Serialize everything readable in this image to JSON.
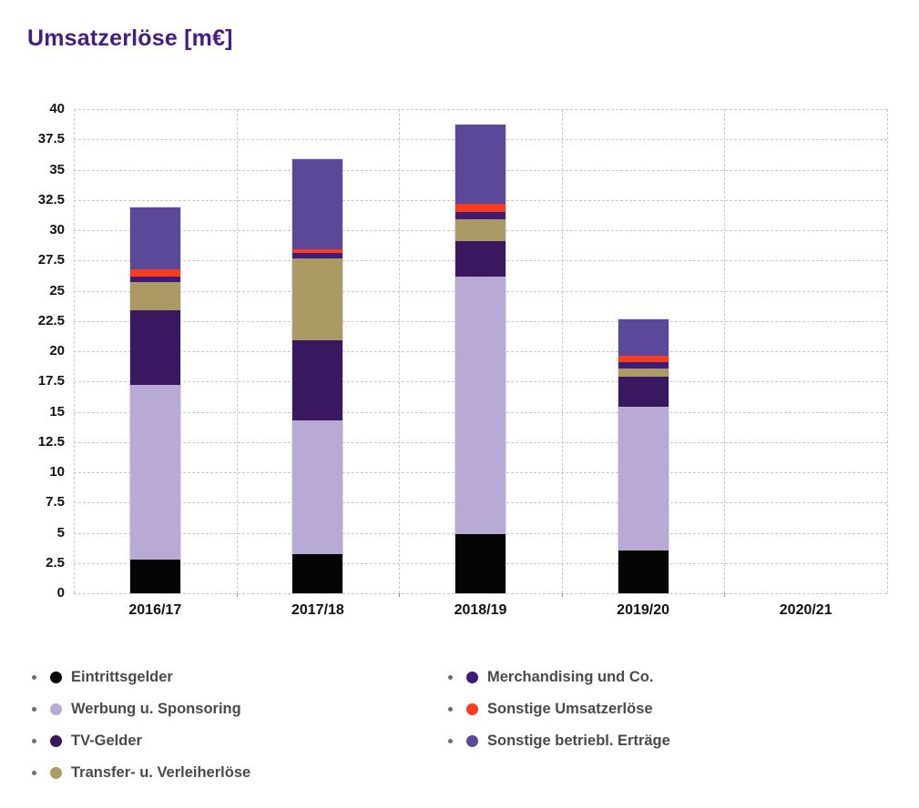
{
  "title": "Umsatzerlöse [m€]",
  "accent_colors": {
    "title": "#451d87",
    "grid": "#c9c9c9",
    "axis_text": "#111111",
    "legend_text": "#4a4a4a"
  },
  "chart_data": {
    "type": "bar",
    "stacked": true,
    "title": "Umsatzerlöse [m€]",
    "categories": [
      "2016/17",
      "2017/18",
      "2018/19",
      "2019/20",
      "2020/21"
    ],
    "series": [
      {
        "name": "Eintrittsgelder",
        "color": "#050505",
        "values": [
          2.8,
          3.2,
          4.9,
          3.5,
          0
        ]
      },
      {
        "name": "Werbung u. Sponsoring",
        "color": "#b9aad5",
        "values": [
          14.4,
          11.1,
          21.3,
          11.9,
          0
        ]
      },
      {
        "name": "TV-Gelder",
        "color": "#38195f",
        "values": [
          6.2,
          6.6,
          2.9,
          2.5,
          0
        ]
      },
      {
        "name": "Transfer- u. Verleiherlöse",
        "color": "#ac9a64",
        "values": [
          2.3,
          6.8,
          1.8,
          0.7,
          0
        ]
      },
      {
        "name": "Merchandising und Co.",
        "color": "#3e1c78",
        "values": [
          0.5,
          0.4,
          0.6,
          0.5,
          0
        ]
      },
      {
        "name": "Sonstige Umsatzerlöse",
        "color": "#f93b1e",
        "values": [
          0.6,
          0.3,
          0.7,
          0.5,
          0
        ]
      },
      {
        "name": "Sonstige betriebl. Erträge",
        "color": "#5c4899",
        "values": [
          5.1,
          7.5,
          6.5,
          3.0,
          0
        ]
      }
    ],
    "totals": [
      31.9,
      35.9,
      38.7,
      22.6,
      0
    ],
    "ylim": [
      0,
      40
    ],
    "yticks": [
      0,
      2.5,
      5,
      7.5,
      10,
      12.5,
      15,
      17.5,
      20,
      22.5,
      25,
      27.5,
      30,
      32.5,
      35,
      37.5,
      40
    ],
    "xlabel": "",
    "ylabel": "",
    "grid": true,
    "legend_position": "bottom",
    "legend_columns": [
      [
        0,
        1,
        2,
        3
      ],
      [
        4,
        5,
        6
      ]
    ]
  }
}
